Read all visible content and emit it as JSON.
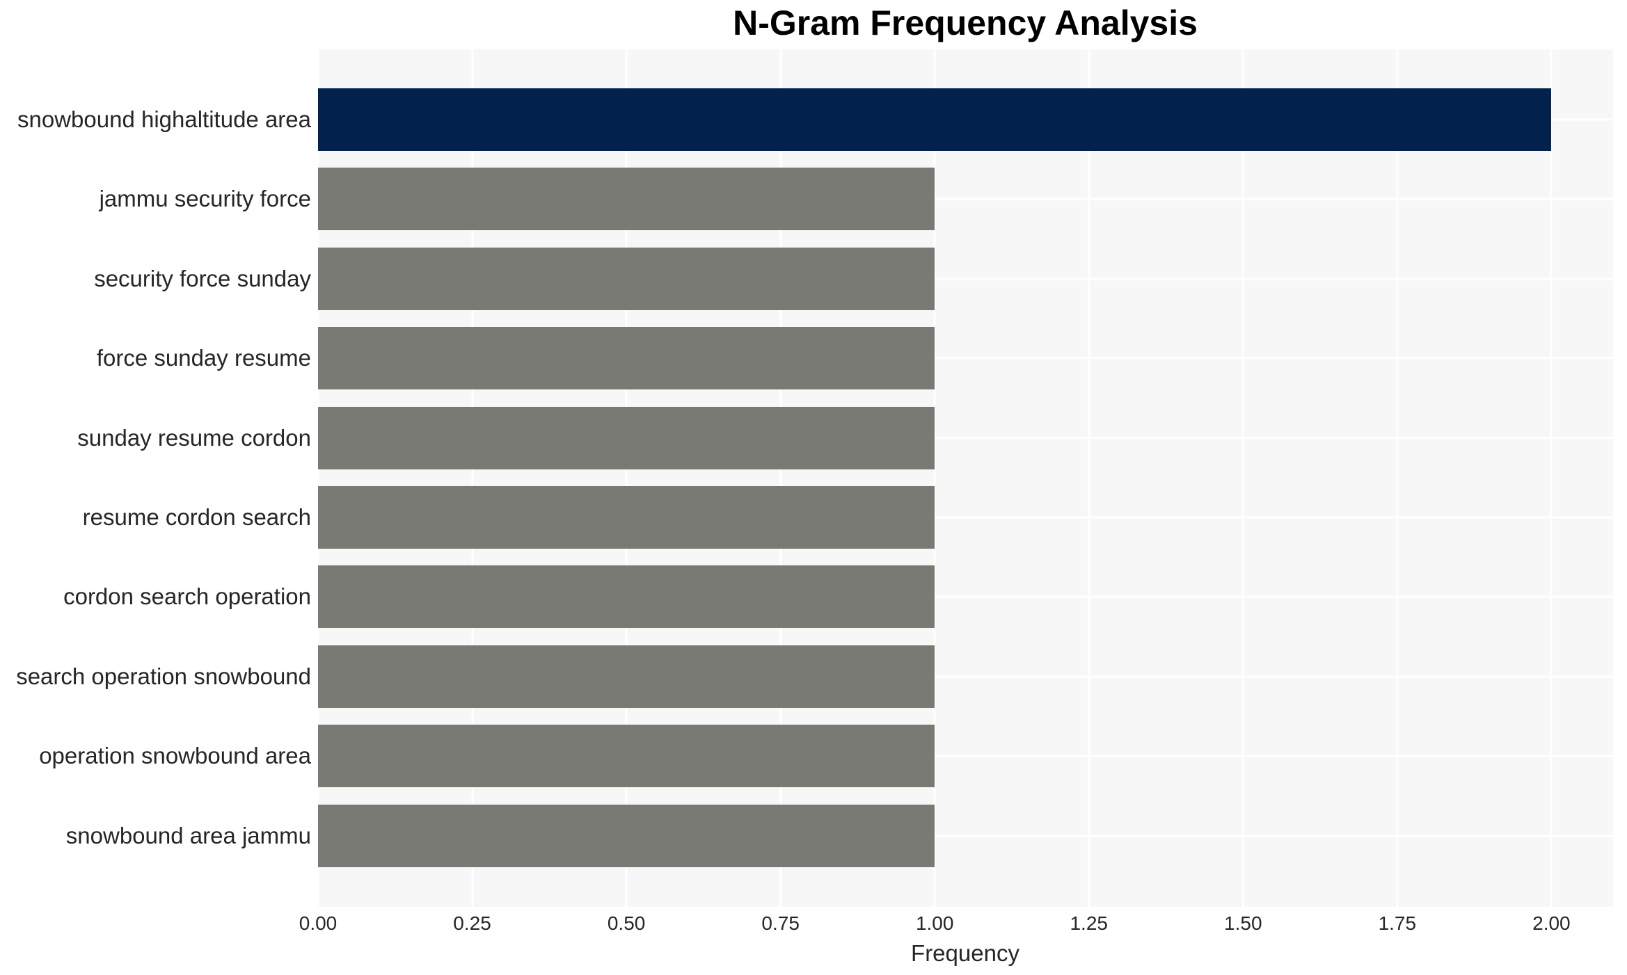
{
  "chart_data": {
    "type": "bar",
    "orientation": "horizontal",
    "title": "N-Gram Frequency Analysis",
    "xlabel": "Frequency",
    "ylabel": "",
    "categories": [
      "snowbound highaltitude area",
      "jammu security force",
      "security force sunday",
      "force sunday resume",
      "sunday resume cordon",
      "resume cordon search",
      "cordon search operation",
      "search operation snowbound",
      "operation snowbound area",
      "snowbound area jammu"
    ],
    "values": [
      2,
      1,
      1,
      1,
      1,
      1,
      1,
      1,
      1,
      1
    ],
    "bar_colors": [
      "#02224d",
      "#7a7a74",
      "#7a7a74",
      "#7a7a74",
      "#7a7a74",
      "#7a7a74",
      "#7a7a74",
      "#7a7a74",
      "#7a7a74",
      "#7a7a74"
    ],
    "xlim": [
      0,
      2.1
    ],
    "xticks": [
      0,
      0.25,
      0.5,
      0.75,
      1,
      1.25,
      1.5,
      1.75,
      2
    ],
    "xtick_labels": [
      "0.00",
      "0.25",
      "0.50",
      "0.75",
      "1.00",
      "1.25",
      "1.50",
      "1.75",
      "2.00"
    ],
    "grid": {
      "show": true,
      "color": "#ffffff",
      "which": "both-axes",
      "position": "behind-bars"
    },
    "legend": {
      "show": false
    },
    "colors": {
      "plot_background": "#f7f7f7",
      "figure_background": "#ffffff",
      "gridline": "#ffffff",
      "tick_text": "#262626",
      "title_text": "#000000",
      "highlight_bar": "#02224d",
      "default_bar": "#7a7a74"
    }
  }
}
